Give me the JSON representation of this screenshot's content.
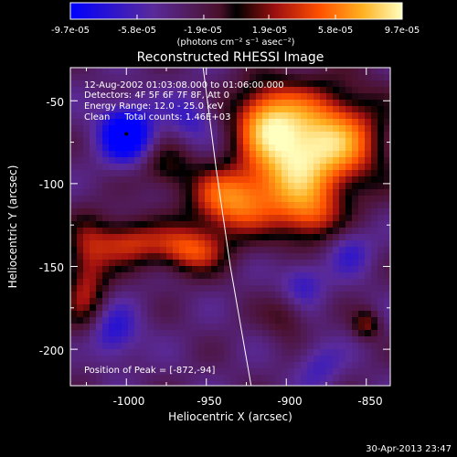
{
  "chart_data": {
    "type": "heatmap",
    "title": "Reconstructed RHESSI Image",
    "xlabel": "Heliocentric X (arcsec)",
    "ylabel": "Heliocentric Y (arcsec)",
    "xlim": [
      -1035,
      -835
    ],
    "ylim": [
      -222,
      -30
    ],
    "x_ticks": [
      -1000,
      -950,
      -900,
      -850
    ],
    "y_ticks": [
      -50,
      -100,
      -150,
      -200
    ],
    "colorbar": {
      "min": -9.7e-05,
      "max": 9.7e-05,
      "tick_values": [
        -9.7e-05,
        -5.8e-05,
        -1.9e-05,
        1.9e-05,
        5.8e-05,
        9.7e-05
      ],
      "tick_labels": [
        "-9.7e-05",
        "-5.8e-05",
        "-1.9e-05",
        "1.9e-05",
        "5.8e-05",
        "9.7e-05"
      ],
      "unit_label": "(photons cm⁻² s⁻¹ asec⁻²)"
    },
    "annotations": [
      "12-Aug-2002 01:03:08.000 to 01:06:00.000",
      "Detectors: 4F 5F 6F 7F 8F, Att 0",
      "Energy Range: 12.0 - 25.0 keV",
      "Clean     Total counts: 1.46E+03"
    ],
    "peak_label": "Position of Peak = [-872,-94]",
    "peak": [
      -872,
      -94
    ],
    "limb_points": [
      [
        -952,
        -30
      ],
      [
        -944,
        -90
      ],
      [
        -935,
        -150
      ],
      [
        -922,
        -222
      ]
    ],
    "sources": [
      {
        "x": -870,
        "y": -75,
        "amp": 1.0,
        "sx": 22,
        "sy": 22
      },
      {
        "x": -900,
        "y": -85,
        "amp": 0.85,
        "sx": 18,
        "sy": 25
      },
      {
        "x": -935,
        "y": -110,
        "amp": 0.9,
        "sx": 18,
        "sy": 14
      },
      {
        "x": -915,
        "y": -60,
        "amp": 0.7,
        "sx": 14,
        "sy": 15
      },
      {
        "x": -960,
        "y": -140,
        "amp": 0.75,
        "sx": 16,
        "sy": 10
      },
      {
        "x": -1000,
        "y": -135,
        "amp": 0.65,
        "sx": 16,
        "sy": 10
      },
      {
        "x": -1025,
        "y": -160,
        "amp": 0.6,
        "sx": 10,
        "sy": 25
      },
      {
        "x": -975,
        "y": -90,
        "amp": 0.4,
        "sx": 12,
        "sy": 10
      },
      {
        "x": -885,
        "y": -120,
        "amp": 0.55,
        "sx": 14,
        "sy": 12
      },
      {
        "x": -850,
        "y": -185,
        "amp": 0.5,
        "sx": 6,
        "sy": 6
      },
      {
        "x": -900,
        "y": -180,
        "amp": 0.3,
        "sx": 10,
        "sy": 10
      },
      {
        "x": -1000,
        "y": -70,
        "amp": -0.9,
        "sx": 12,
        "sy": 12
      },
      {
        "x": -1010,
        "y": -190,
        "amp": -0.5,
        "sx": 12,
        "sy": 12
      },
      {
        "x": -890,
        "y": -160,
        "amp": -0.4,
        "sx": 10,
        "sy": 10
      },
      {
        "x": -860,
        "y": -140,
        "amp": -0.35,
        "sx": 10,
        "sy": 10
      },
      {
        "x": -960,
        "y": -60,
        "amp": -0.35,
        "sx": 10,
        "sy": 10
      },
      {
        "x": -880,
        "y": -210,
        "amp": -0.3,
        "sx": 10,
        "sy": 10
      }
    ]
  },
  "footer": {
    "timestamp": "30-Apr-2013 23:47"
  }
}
